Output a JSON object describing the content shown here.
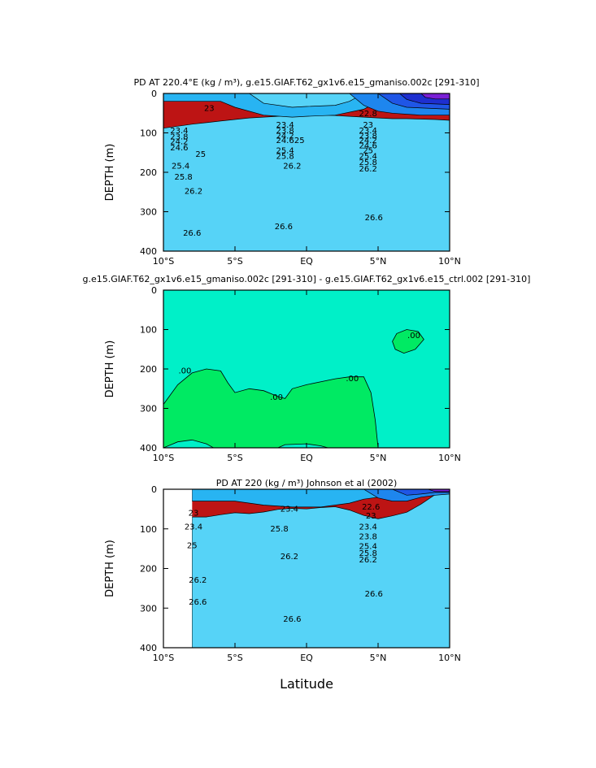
{
  "colors": {
    "level_fills": [
      "#7a1fd6",
      "#1e2fd0",
      "#1f56e6",
      "#1e86ee",
      "#28b4f2",
      "#56d3f7",
      "#8ef0f2",
      "#40f5a2",
      "#2de52f",
      "#a7ee28",
      "#f2f227",
      "#f4d522",
      "#f7ac1d",
      "#f8861b",
      "#f4661c",
      "#f13f1d",
      "#ea281f",
      "#e71a1b",
      "#d01818",
      "#bd1414"
    ],
    "diff_positive": "#00f0c8",
    "diff_negative": "#00ea63",
    "line": "#000000"
  },
  "x_axis_title": "Latitude",
  "chart_data": [
    {
      "type": "heatmap",
      "title": "PD AT 220.4°E (kg / m³), g.e15.GIAF.T62_gx1v6.e15_gmaniso.002c [291-310]",
      "ylabel": "DEPTH (m)",
      "xlabel": "",
      "xlim": [
        -10,
        10
      ],
      "ylim": [
        400,
        0
      ],
      "x_ticks": [
        -10,
        -5,
        0,
        5,
        10
      ],
      "x_tick_labels": [
        "10°S",
        "5°S",
        "EQ",
        "5°N",
        "10°N"
      ],
      "y_ticks": [
        0,
        100,
        200,
        300,
        400
      ],
      "y_tick_labels": [
        "0",
        "100",
        "200",
        "300",
        "400"
      ],
      "contour_interval": 0.2,
      "levels": [
        22.6,
        22.8,
        23,
        23.4,
        23.8,
        24.2,
        24.6,
        25,
        25.4,
        25.8,
        26.2,
        26.6
      ],
      "contour_labels": [
        {
          "x": -8.9,
          "y": 95,
          "text": "23.4"
        },
        {
          "x": -8.9,
          "y": 110,
          "text": "23.8"
        },
        {
          "x": -8.9,
          "y": 123,
          "text": "24.2"
        },
        {
          "x": -8.9,
          "y": 138,
          "text": "24.6"
        },
        {
          "x": -6.8,
          "y": 38,
          "text": "23"
        },
        {
          "x": -7.4,
          "y": 155,
          "text": "25"
        },
        {
          "x": -8.8,
          "y": 185,
          "text": "25.4"
        },
        {
          "x": -8.6,
          "y": 212,
          "text": "25.8"
        },
        {
          "x": -7.9,
          "y": 248,
          "text": "26.2"
        },
        {
          "x": -1.5,
          "y": 80,
          "text": "23.4"
        },
        {
          "x": -1.5,
          "y": 95,
          "text": "23.8"
        },
        {
          "x": -1.5,
          "y": 108,
          "text": "24.2"
        },
        {
          "x": -1.5,
          "y": 120,
          "text": "24.6"
        },
        {
          "x": -0.5,
          "y": 120,
          "text": "25"
        },
        {
          "x": -1.5,
          "y": 145,
          "text": "25.4"
        },
        {
          "x": -1.5,
          "y": 160,
          "text": "25.8"
        },
        {
          "x": -1.0,
          "y": 185,
          "text": "26.2"
        },
        {
          "x": 4.3,
          "y": 52,
          "text": "22.8"
        },
        {
          "x": 4.3,
          "y": 80,
          "text": "23"
        },
        {
          "x": 4.3,
          "y": 95,
          "text": "23.4"
        },
        {
          "x": 4.3,
          "y": 108,
          "text": "23.8"
        },
        {
          "x": 4.3,
          "y": 120,
          "text": "24.2"
        },
        {
          "x": 4.3,
          "y": 133,
          "text": "24.6"
        },
        {
          "x": 4.3,
          "y": 145,
          "text": "25"
        },
        {
          "x": 4.3,
          "y": 160,
          "text": "25.4"
        },
        {
          "x": 4.3,
          "y": 175,
          "text": "25.8"
        },
        {
          "x": 4.3,
          "y": 192,
          "text": "26.2"
        },
        {
          "x": -8.0,
          "y": 355,
          "text": "26.6"
        },
        {
          "x": -1.6,
          "y": 338,
          "text": "26.6"
        },
        {
          "x": 4.7,
          "y": 315,
          "text": "26.6"
        }
      ]
    },
    {
      "type": "heatmap",
      "title": "g.e15.GIAF.T62_gx1v6.e15_gmaniso.002c [291-310] - g.e15.GIAF.T62_gx1v6.e15_ctrl.002 [291-310]",
      "ylabel": "DEPTH (m)",
      "xlabel": "",
      "xlim": [
        -10,
        10
      ],
      "ylim": [
        400,
        0
      ],
      "x_ticks": [
        -10,
        -5,
        0,
        5,
        10
      ],
      "x_tick_labels": [
        "10°S",
        "5°S",
        "EQ",
        "5°N",
        "10°N"
      ],
      "y_ticks": [
        0,
        100,
        200,
        300,
        400
      ],
      "y_tick_labels": [
        "0",
        "100",
        "200",
        "300",
        "400"
      ],
      "levels": [
        0
      ],
      "contour_labels": [
        {
          "x": -8.5,
          "y": 205,
          "text": ".00"
        },
        {
          "x": -2.1,
          "y": 272,
          "text": ".00"
        },
        {
          "x": 3.2,
          "y": 225,
          "text": ".00"
        },
        {
          "x": 7.5,
          "y": 115,
          "text": ".00"
        }
      ]
    },
    {
      "type": "heatmap",
      "title": "PD AT 220 (kg / m³) Johnson et al (2002)",
      "ylabel": "DEPTH (m)",
      "xlabel": "Latitude",
      "xlim": [
        -10,
        10
      ],
      "ylim": [
        400,
        0
      ],
      "x_ticks": [
        -10,
        -5,
        0,
        5,
        10
      ],
      "x_tick_labels": [
        "10°S",
        "5°S",
        "EQ",
        "5°N",
        "10°N"
      ],
      "y_ticks": [
        0,
        100,
        200,
        300,
        400
      ],
      "y_tick_labels": [
        "0",
        "100",
        "200",
        "300",
        "400"
      ],
      "data_x_range": [
        -8,
        10
      ],
      "levels": [
        22.6,
        23,
        23.4,
        25,
        25.8,
        26.2,
        26.6
      ],
      "contour_labels": [
        {
          "x": -7.9,
          "y": 60,
          "text": "23"
        },
        {
          "x": -7.9,
          "y": 95,
          "text": "23.4"
        },
        {
          "x": -8.0,
          "y": 143,
          "text": "25"
        },
        {
          "x": -7.6,
          "y": 230,
          "text": "26.2"
        },
        {
          "x": -7.6,
          "y": 285,
          "text": "26.6"
        },
        {
          "x": -1.9,
          "y": 100,
          "text": "25.8"
        },
        {
          "x": -1.2,
          "y": 170,
          "text": "26.2"
        },
        {
          "x": -1.0,
          "y": 328,
          "text": "26.6"
        },
        {
          "x": -1.2,
          "y": 50,
          "text": "23.4"
        },
        {
          "x": 4.5,
          "y": 45,
          "text": "22.6"
        },
        {
          "x": 4.5,
          "y": 68,
          "text": "23"
        },
        {
          "x": 4.3,
          "y": 95,
          "text": "23.4"
        },
        {
          "x": 4.3,
          "y": 120,
          "text": "23.8"
        },
        {
          "x": 4.3,
          "y": 145,
          "text": "25.4"
        },
        {
          "x": 4.3,
          "y": 162,
          "text": "25.8"
        },
        {
          "x": 4.3,
          "y": 178,
          "text": "26.2"
        },
        {
          "x": 4.7,
          "y": 265,
          "text": "26.6"
        }
      ]
    }
  ]
}
